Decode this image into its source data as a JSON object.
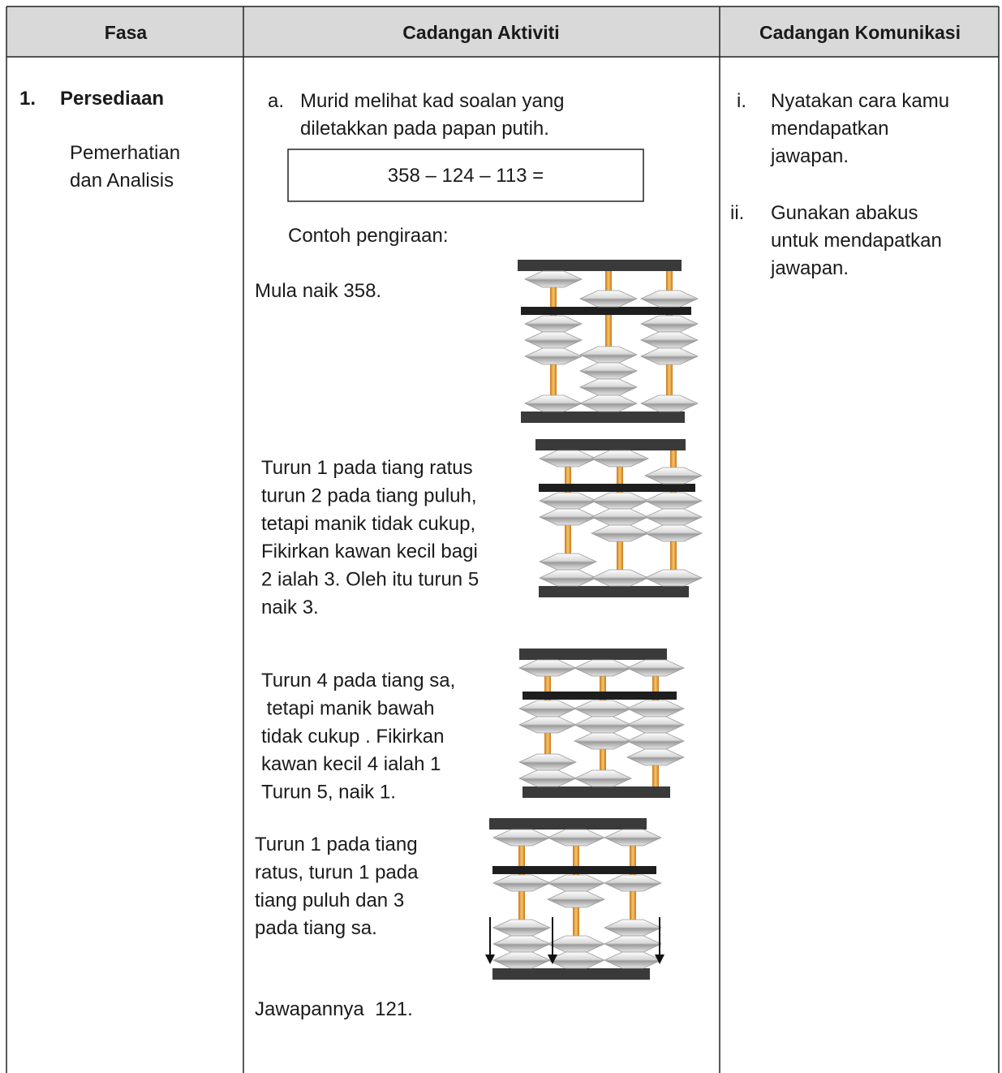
{
  "table": {
    "header": [
      "Fasa",
      "Cadangan Aktiviti",
      "Cadangan Komunikasi"
    ],
    "rows": [
      {
        "fasa": {
          "number": "1.",
          "title": "Persediaan",
          "subtitle": [
            "Pemerhatian",
            "dan Analisis"
          ]
        },
        "aktiviti": {
          "marker": "a.",
          "intro": [
            "Murid melihat kad soalan yang",
            "diletakkan pada papan putih."
          ],
          "question": "358 – 124 – 113 =",
          "example_label": "Contoh pengiraan:",
          "steps": [
            [
              "Mula naik 358."
            ],
            [
              "Turun 1 pada tiang ratus",
              "turun 2 pada tiang puluh,",
              "tetapi manik tidak cukup,",
              "Fikirkan kawan kecil bagi",
              "2 ialah 3. Oleh itu turun 5",
              "naik 3."
            ],
            [
              "Turun 4 pada tiang sa,",
              " tetapi manik bawah",
              "tidak cukup . Fikirkan",
              "kawan kecil 4 ialah 1",
              "Turun 5, naik 1."
            ],
            [
              "Turun 1 pada tiang",
              "ratus, turun 1 pada",
              "tiang puluh dan 3",
              "pada tiang sa."
            ]
          ],
          "answer": "Jawapannya  121."
        },
        "komunikasi": [
          {
            "marker": "i.",
            "lines": [
              "Nyatakan cara kamu",
              "mendapatkan",
              "jawapan."
            ]
          },
          {
            "marker": "ii.",
            "lines": [
              "Gunakan abakus",
              "untuk mendapatkan",
              "jawapan."
            ]
          }
        ]
      }
    ]
  }
}
